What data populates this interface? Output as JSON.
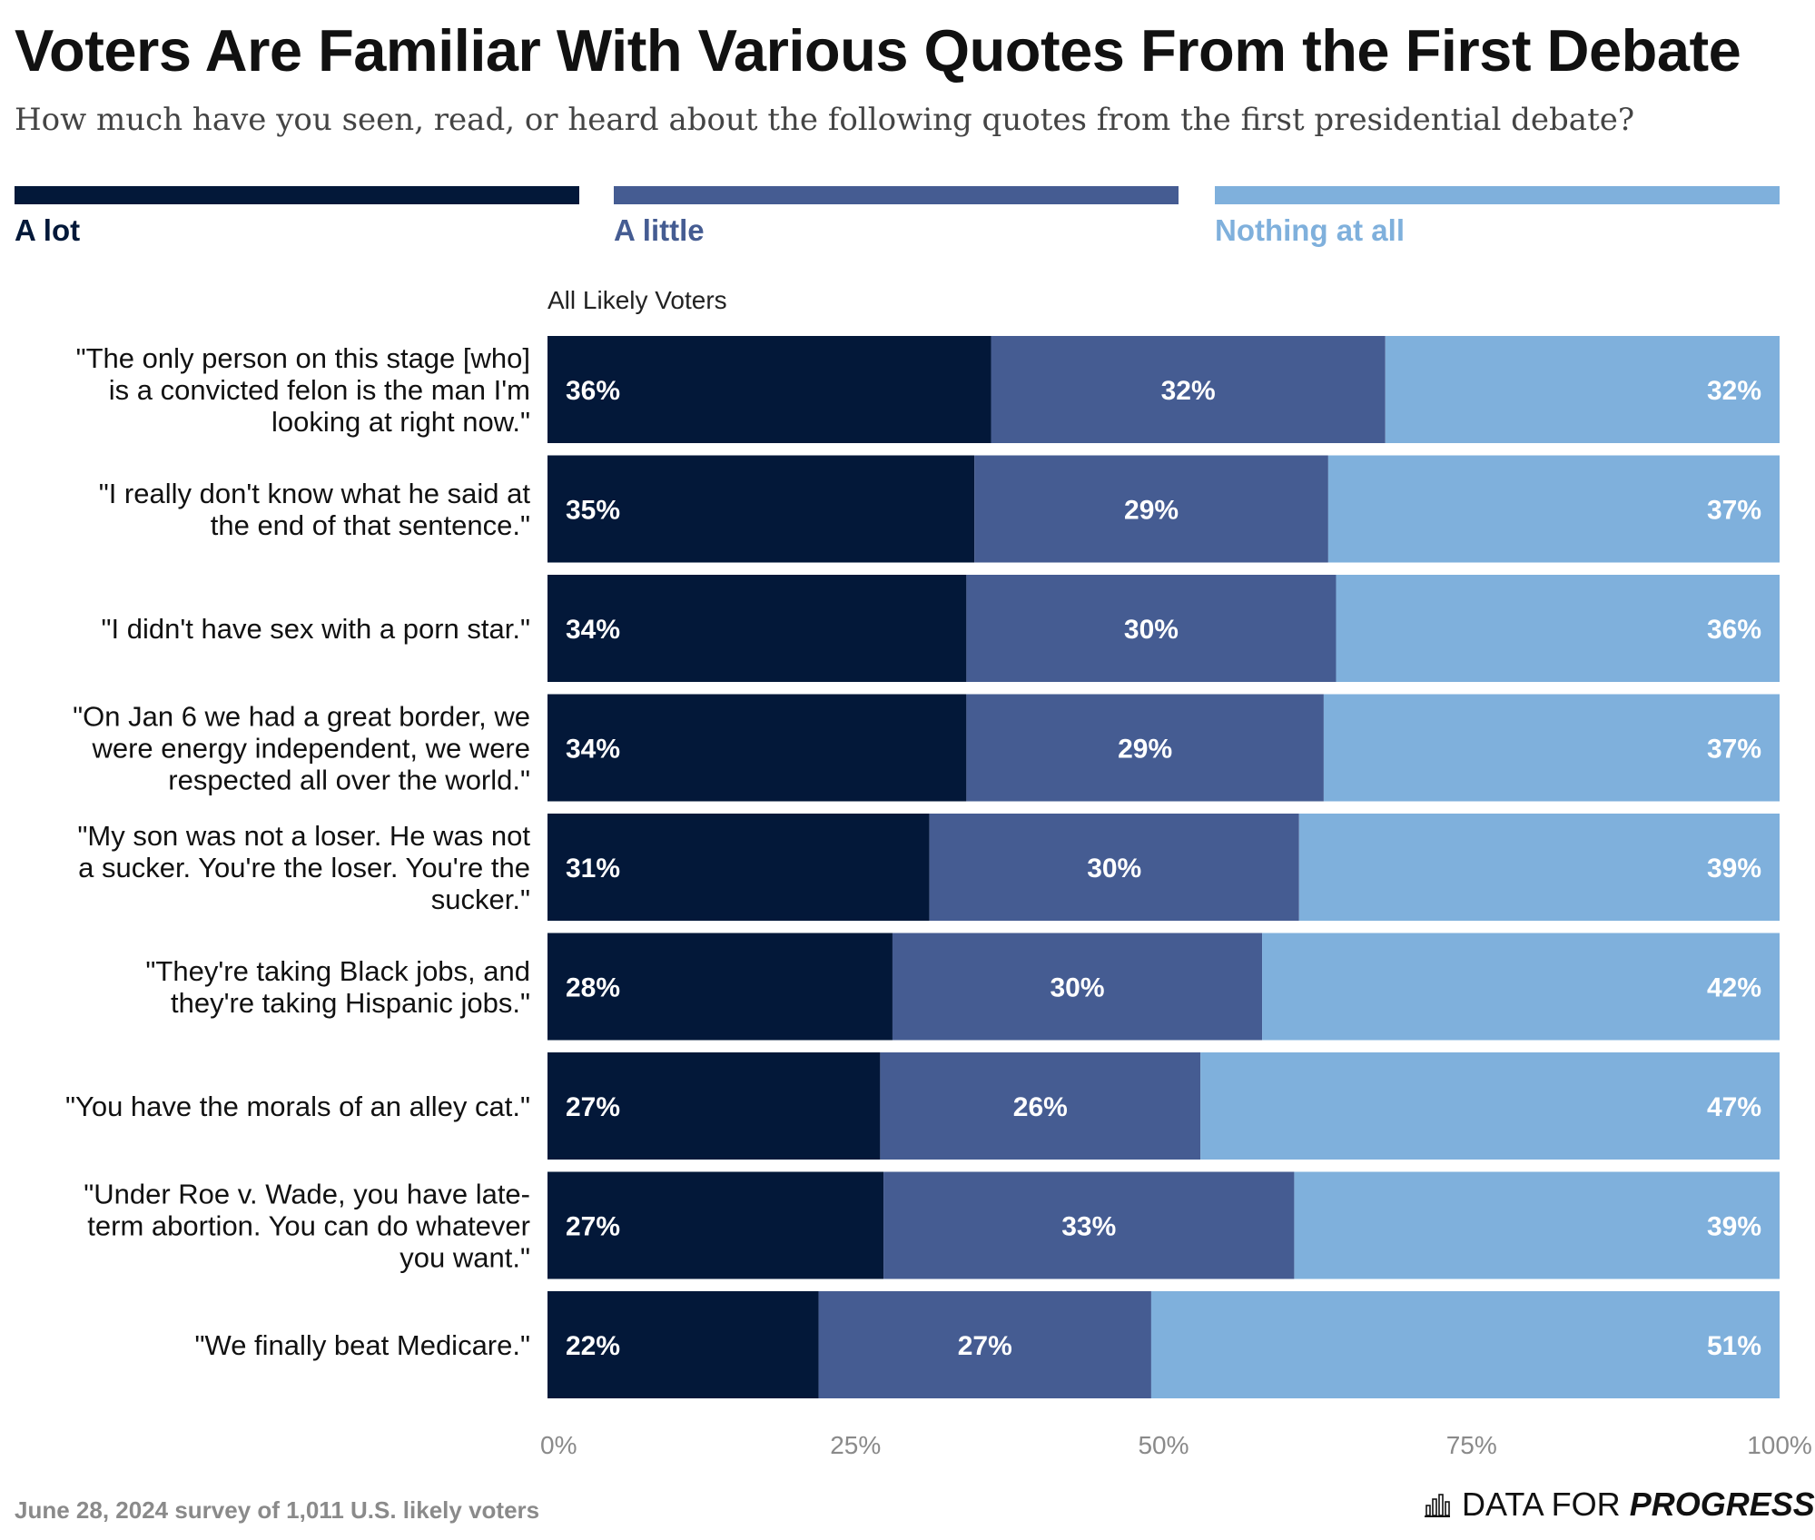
{
  "title": "Voters Are Familiar With Various Quotes From the First Debate",
  "subtitle": "How much have you seen, read, or heard about the following quotes from the first presidential debate?",
  "colors": {
    "a_lot": "#031839",
    "a_little": "#455c92",
    "nothing": "#7fb0dc"
  },
  "legend": [
    {
      "label": "A lot",
      "color": "#031839"
    },
    {
      "label": "A little",
      "color": "#455c92"
    },
    {
      "label": "Nothing at all",
      "color": "#7fb0dc"
    }
  ],
  "group_label": "All Likely Voters",
  "chart_data": {
    "type": "bar",
    "orientation": "horizontal",
    "stacked": true,
    "categories": [
      "\"The only person on this stage [who] is a convicted felon is the man I'm looking at right now.\"",
      "\"I really don't know what he said at the end of that sentence.\"",
      "\"I didn't have sex with a porn star.\"",
      "\"On Jan 6 we had a great border, we were energy independent, we were respected all over the world.\"",
      "\"My son was not a loser. He was not a sucker. You're the loser. You're the sucker.\"",
      "\"They're taking Black jobs, and they're taking Hispanic jobs.\"",
      "\"You have the morals of an alley cat.\"",
      "\"Under Roe v. Wade, you have late-term abortion. You can do whatever you want.\"",
      "\"We finally beat Medicare.\""
    ],
    "category_lines": [
      [
        "\"The only person on this stage [who]",
        "is a convicted felon is the man I'm",
        "looking at right now.\""
      ],
      [
        "\"I really don't know what he said at",
        "the end of that sentence.\""
      ],
      [
        "\"I didn't have sex with a porn star.\""
      ],
      [
        "\"On Jan 6 we had a great border, we",
        "were energy independent, we were",
        "respected all over the world.\""
      ],
      [
        "\"My son was not a loser. He was not",
        "a sucker. You're the loser. You're the",
        "sucker.\""
      ],
      [
        "\"They're taking Black jobs, and",
        "they're taking Hispanic jobs.\""
      ],
      [
        "\"You have the morals of an alley cat.\""
      ],
      [
        "\"Under Roe v. Wade, you have late-",
        "term abortion. You can do whatever",
        "you want.\""
      ],
      [
        "\"We finally beat Medicare.\""
      ]
    ],
    "series": [
      {
        "name": "A lot",
        "values": [
          36,
          35,
          34,
          34,
          31,
          28,
          27,
          27,
          22
        ]
      },
      {
        "name": "A little",
        "values": [
          32,
          29,
          30,
          29,
          30,
          30,
          26,
          33,
          27
        ]
      },
      {
        "name": "Nothing at all",
        "values": [
          32,
          37,
          36,
          37,
          39,
          42,
          47,
          39,
          51
        ]
      }
    ],
    "xlim": [
      0,
      100
    ],
    "xticks": [
      0,
      25,
      50,
      75,
      100
    ],
    "xtick_labels": [
      "0%",
      "25%",
      "50%",
      "75%",
      "100%"
    ],
    "value_suffix": "%"
  },
  "footer": {
    "note": "June 28, 2024 survey of 1,011 U.S. likely voters",
    "brand_prefix": "DATA FOR ",
    "brand_bold": "PROGRESS"
  }
}
